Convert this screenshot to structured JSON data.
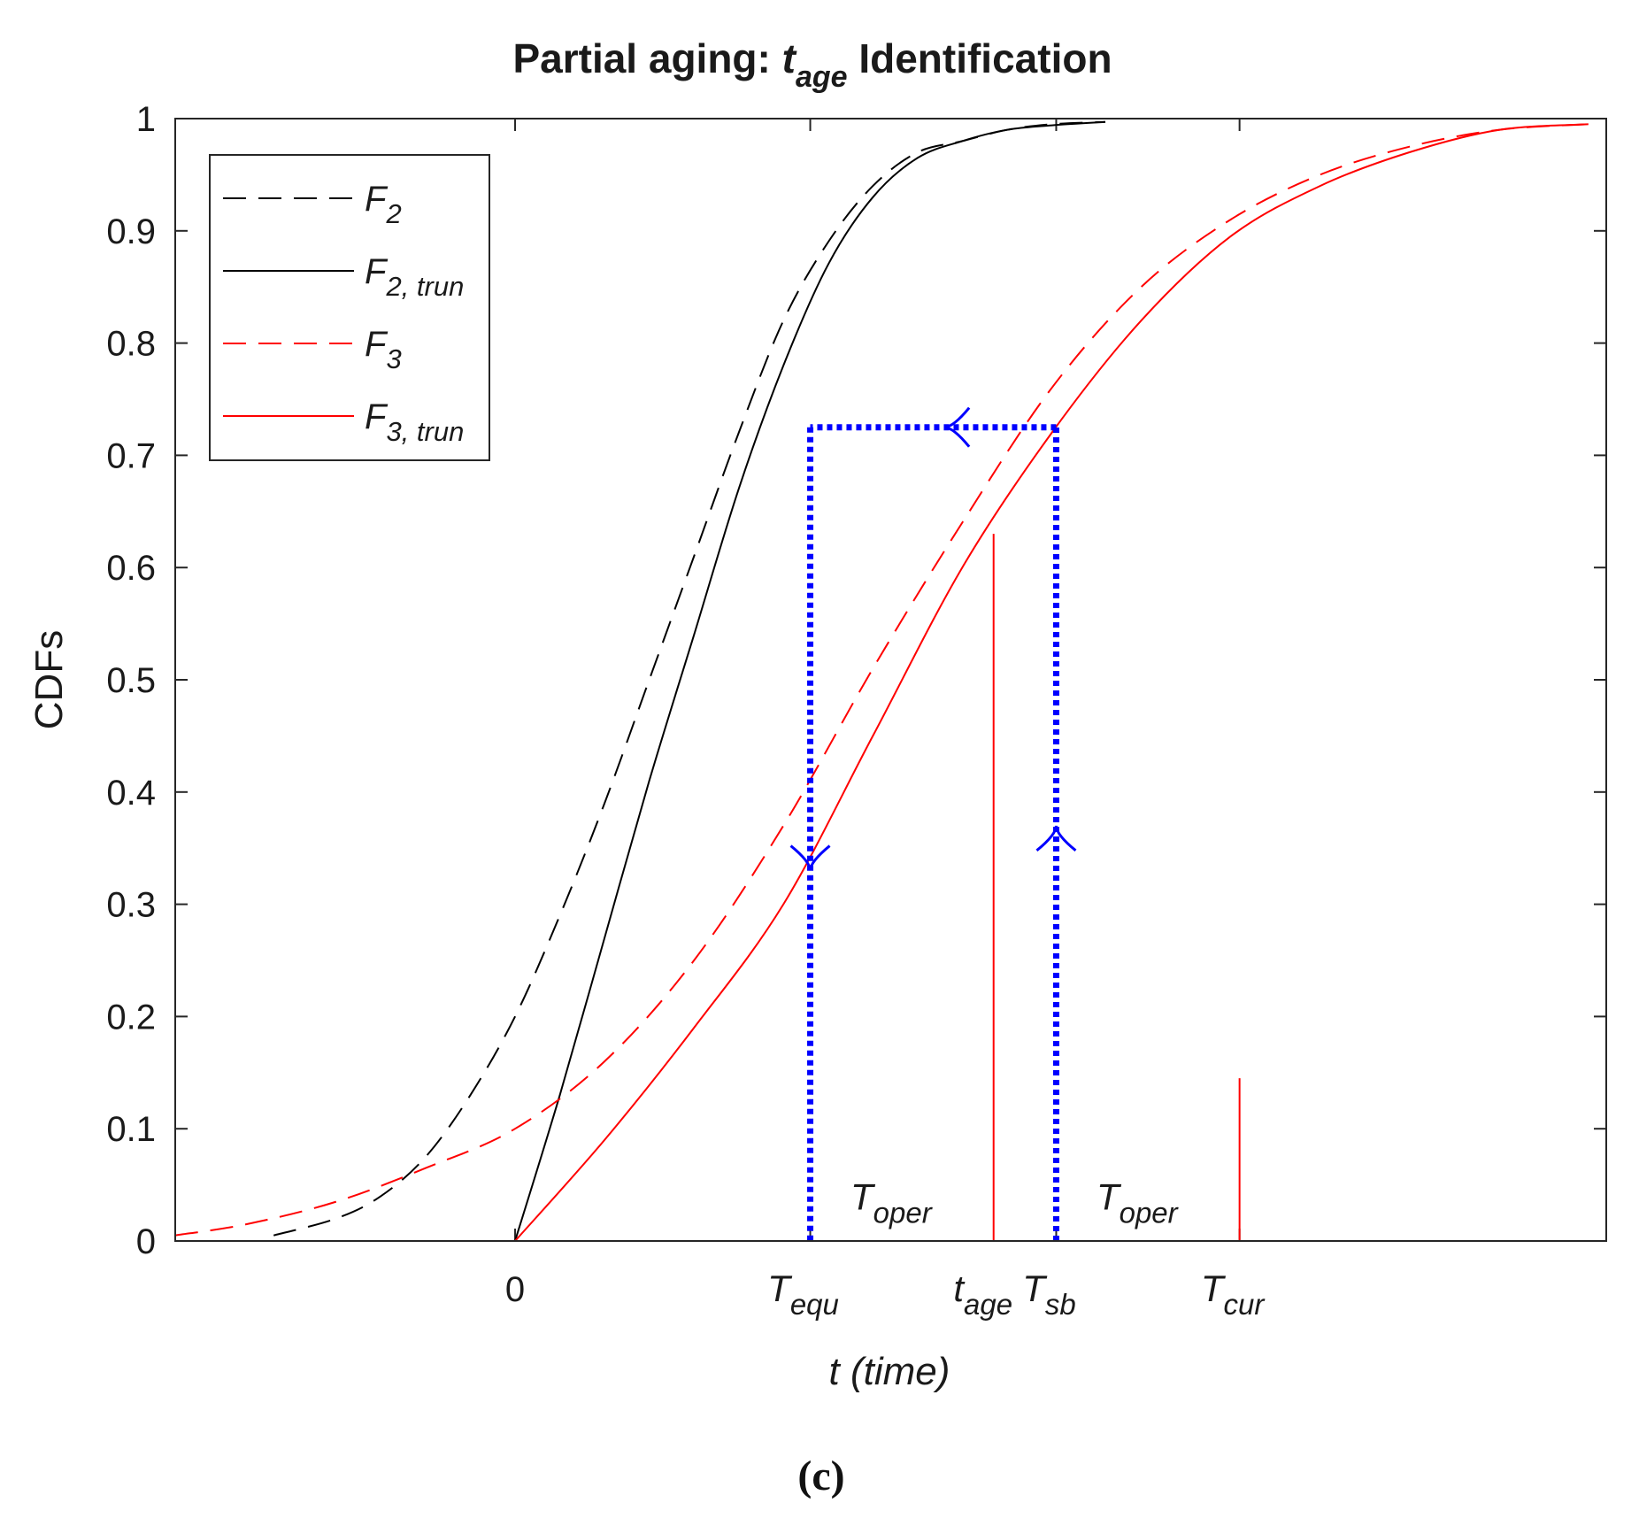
{
  "chart_data": {
    "type": "line",
    "title": {
      "main_prefix": "Partial aging: ",
      "italic_symbol": "t",
      "italic_sub": "age",
      "main_suffix": " Identification"
    },
    "ylabel": "CDFs",
    "xlabel": "t (time)",
    "caption": "(c)",
    "xlim": [
      -3.8,
      12.2
    ],
    "ylim": [
      0,
      1
    ],
    "yticks": [
      0,
      0.1,
      0.2,
      0.3,
      0.4,
      0.5,
      0.6,
      0.7,
      0.8,
      0.9,
      1
    ],
    "ytick_labels": [
      "0",
      "0.1",
      "0.2",
      "0.3",
      "0.4",
      "0.5",
      "0.6",
      "0.7",
      "0.8",
      "0.9",
      "1"
    ],
    "xticks": [
      {
        "x": 0,
        "base": "0",
        "sub": ""
      },
      {
        "x": 3.3,
        "base": "T",
        "sub": "equ"
      },
      {
        "x": 6.05,
        "base": "T",
        "sub": "sb"
      },
      {
        "x": 8.1,
        "base": "T",
        "sub": "cur"
      }
    ],
    "extra_x_labels": [
      {
        "x": 5.35,
        "base": "t",
        "sub": "age"
      }
    ],
    "legend": {
      "placement": "top-left",
      "entries": [
        {
          "base": "F",
          "sub": "2",
          "series": "F2"
        },
        {
          "base": "F",
          "sub": "2, trun",
          "series": "F2trun"
        },
        {
          "base": "F",
          "sub": "3",
          "series": "F3"
        },
        {
          "base": "F",
          "sub": "3, trun",
          "series": "F3trun"
        }
      ]
    },
    "series": [
      {
        "name": "F2",
        "color": "#000000",
        "style": "dashed",
        "x": [
          -2.7,
          -2,
          -1.5,
          -1,
          -0.5,
          0,
          0.5,
          1,
          1.5,
          2,
          2.5,
          3,
          3.5,
          4,
          4.5,
          5,
          5.5,
          6,
          6.6
        ],
        "y": [
          0.005,
          0.02,
          0.04,
          0.075,
          0.13,
          0.2,
          0.29,
          0.39,
          0.5,
          0.61,
          0.72,
          0.82,
          0.89,
          0.94,
          0.97,
          0.98,
          0.99,
          0.995,
          0.997
        ]
      },
      {
        "name": "F2trun",
        "color": "#000000",
        "style": "solid",
        "x": [
          0,
          0.5,
          1,
          1.5,
          2,
          2.5,
          3,
          3.5,
          4,
          4.5,
          5,
          5.5,
          6,
          6.6
        ],
        "y": [
          0,
          0.13,
          0.27,
          0.41,
          0.54,
          0.67,
          0.78,
          0.87,
          0.93,
          0.965,
          0.98,
          0.99,
          0.994,
          0.997
        ]
      },
      {
        "name": "F3",
        "color": "#ff0000",
        "style": "dashed",
        "x": [
          -3.8,
          -3,
          -2,
          -1,
          0,
          1,
          2,
          3,
          4,
          5,
          6,
          7,
          8,
          9,
          10,
          11,
          12
        ],
        "y": [
          0.005,
          0.015,
          0.035,
          0.065,
          0.1,
          0.16,
          0.25,
          0.37,
          0.51,
          0.64,
          0.76,
          0.85,
          0.91,
          0.95,
          0.975,
          0.99,
          0.995
        ]
      },
      {
        "name": "F3trun",
        "color": "#ff0000",
        "style": "solid",
        "x": [
          0,
          1,
          2,
          3,
          4,
          5,
          6,
          7,
          8,
          9,
          10,
          11,
          12
        ],
        "y": [
          0,
          0.09,
          0.19,
          0.3,
          0.45,
          0.6,
          0.72,
          0.82,
          0.895,
          0.94,
          0.97,
          0.99,
          0.995
        ]
      }
    ],
    "markers": [
      {
        "name": "t-age-line",
        "x": 5.35,
        "y0": 0,
        "y1": 0.63,
        "color": "#ff0000"
      },
      {
        "name": "t-cur-line",
        "x": 8.1,
        "y0": 0,
        "y1": 0.145,
        "color": "#ff0000"
      }
    ],
    "guides": {
      "color": "#0000ff",
      "level": 0.725,
      "x_left": 3.3,
      "x_right": 6.05,
      "arrow_up_at": 0.37,
      "arrow_left_at": 4.8,
      "arrow_down_at": 0.33
    },
    "annotations": [
      {
        "name": "t-oper-left",
        "base": "T",
        "sub": "oper",
        "x": 3.75,
        "y": 0.02
      },
      {
        "name": "t-oper-right",
        "base": "T",
        "sub": "oper",
        "x": 6.5,
        "y": 0.02
      }
    ]
  }
}
